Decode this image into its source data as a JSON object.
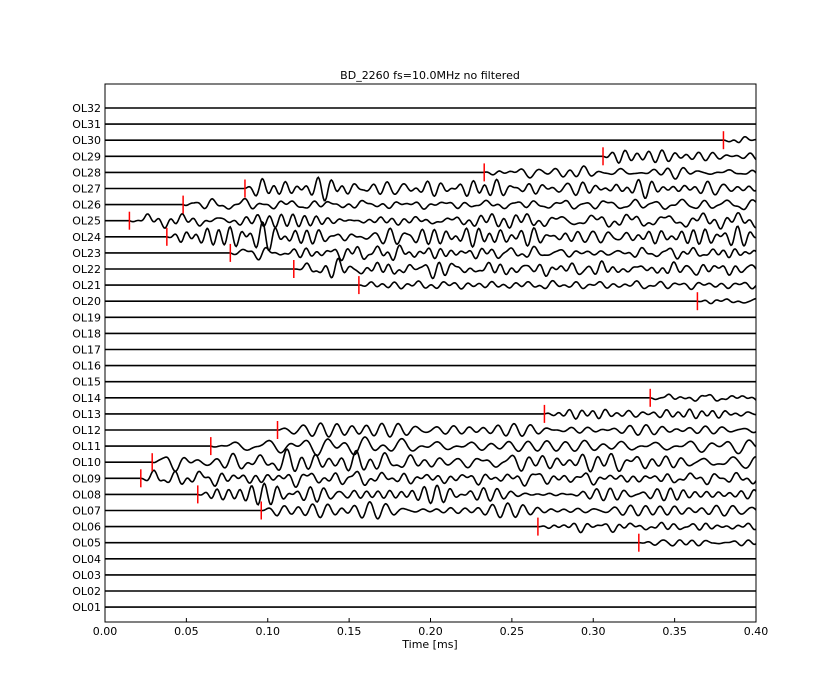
{
  "chart_data": {
    "type": "line",
    "title": "BD_2260 fs=10.0MHz no filtered",
    "xlabel": "Time [ms]",
    "ylabel": "",
    "xlim": [
      0.0,
      0.4
    ],
    "x_ticks": [
      "0.00",
      "0.05",
      "0.10",
      "0.15",
      "0.20",
      "0.25",
      "0.30",
      "0.35",
      "0.40"
    ],
    "x_tick_values": [
      0.0,
      0.05,
      0.1,
      0.15,
      0.2,
      0.25,
      0.3,
      0.35,
      0.4
    ],
    "grid": false,
    "legend": "none",
    "trace_color": "#000000",
    "pick_color": "#ff0000",
    "channels": [
      "OL32",
      "OL31",
      "OL30",
      "OL29",
      "OL28",
      "OL27",
      "OL26",
      "OL25",
      "OL24",
      "OL23",
      "OL22",
      "OL21",
      "OL20",
      "OL19",
      "OL18",
      "OL17",
      "OL16",
      "OL15",
      "OL14",
      "OL13",
      "OL12",
      "OL11",
      "OL10",
      "OL09",
      "OL08",
      "OL07",
      "OL06",
      "OL05",
      "OL04",
      "OL03",
      "OL02",
      "OL01"
    ],
    "first_arrival_picks_ms": {
      "OL32": null,
      "OL31": null,
      "OL30": 0.38,
      "OL29": 0.306,
      "OL28": 0.233,
      "OL27": 0.086,
      "OL26": 0.048,
      "OL25": 0.015,
      "OL24": 0.038,
      "OL23": 0.077,
      "OL22": 0.116,
      "OL21": 0.156,
      "OL20": 0.364,
      "OL19": null,
      "OL18": null,
      "OL17": null,
      "OL16": null,
      "OL15": null,
      "OL14": 0.335,
      "OL13": 0.27,
      "OL12": 0.106,
      "OL11": 0.065,
      "OL10": 0.029,
      "OL09": 0.022,
      "OL08": 0.057,
      "OL07": 0.096,
      "OL06": 0.266,
      "OL05": 0.328,
      "OL04": null,
      "OL03": null,
      "OL02": null,
      "OL01": null
    },
    "wave_amplitude": {
      "OL32": 0,
      "OL31": 0,
      "OL30": 0.6,
      "OL29": 0.7,
      "OL28": 0.8,
      "OL27": 1.2,
      "OL26": 1.3,
      "OL25": 1.4,
      "OL24": 1.3,
      "OL23": 1.2,
      "OL22": 1.0,
      "OL21": 0.8,
      "OL20": 0.5,
      "OL19": 0,
      "OL18": 0,
      "OL17": 0,
      "OL16": 0,
      "OL15": 0,
      "OL14": 0.6,
      "OL13": 0.8,
      "OL12": 1.0,
      "OL11": 1.2,
      "OL10": 1.3,
      "OL09": 1.3,
      "OL08": 1.2,
      "OL07": 1.1,
      "OL06": 0.8,
      "OL05": 0.5,
      "OL04": 0,
      "OL03": 0,
      "OL02": 0,
      "OL01": 0
    }
  }
}
